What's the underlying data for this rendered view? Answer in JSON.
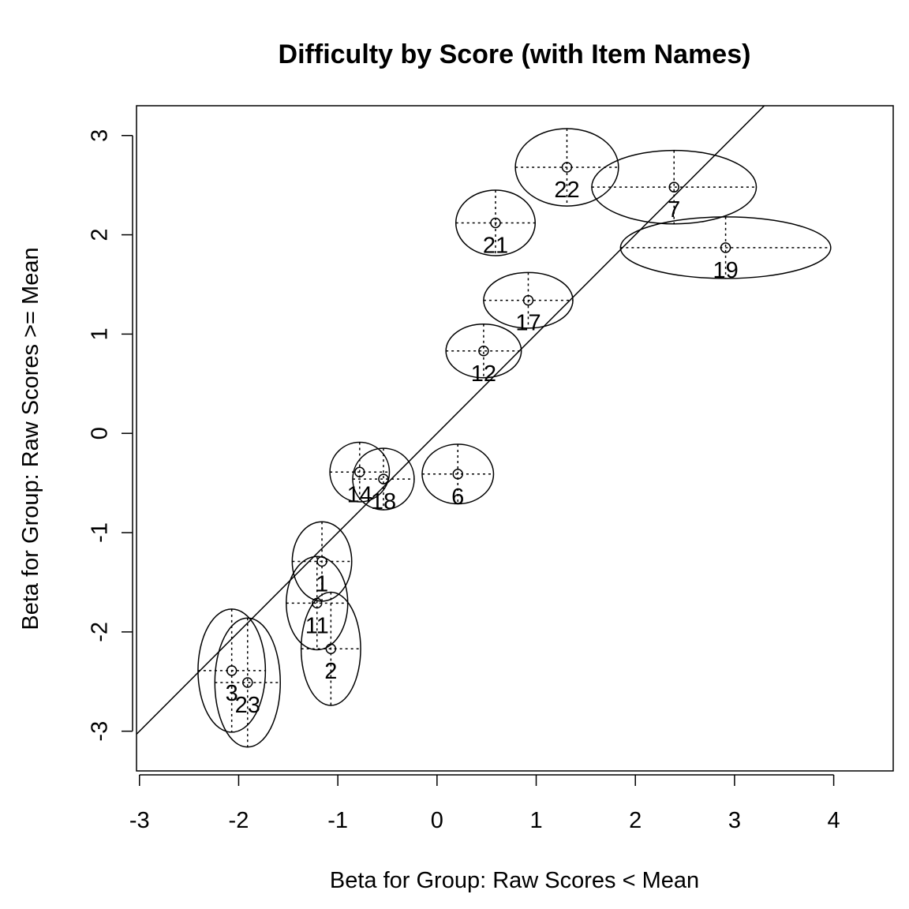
{
  "chart_data": {
    "type": "scatter",
    "title": "Difficulty by Score (with Item Names)",
    "xlabel": "Beta for Group: Raw Scores < Mean",
    "ylabel": "Beta for Group: Raw Scores >= Mean",
    "xlim": [
      -3.03,
      4.6
    ],
    "ylim": [
      -3.4,
      3.3
    ],
    "xticks": [
      -3,
      -2,
      -1,
      0,
      1,
      2,
      3,
      4
    ],
    "yticks": [
      -3,
      -2,
      -1,
      0,
      1,
      2,
      3
    ],
    "xtick_labels": [
      "-3",
      "-2",
      "-1",
      "0",
      "1",
      "2",
      "3",
      "4"
    ],
    "ytick_labels": [
      "-3",
      "-2",
      "-1",
      "0",
      "1",
      "2",
      "3"
    ],
    "identity_line": {
      "slope": 1,
      "intercept": 0
    },
    "points": [
      {
        "label": "22",
        "x": 1.31,
        "y": 2.68,
        "x_err": 0.52,
        "y_err": 0.39
      },
      {
        "label": "7",
        "x": 2.39,
        "y": 2.48,
        "x_err": 0.83,
        "y_err": 0.37
      },
      {
        "label": "21",
        "x": 0.59,
        "y": 2.12,
        "x_err": 0.4,
        "y_err": 0.33
      },
      {
        "label": "19",
        "x": 2.91,
        "y": 1.87,
        "x_err": 1.06,
        "y_err": 0.31
      },
      {
        "label": "17",
        "x": 0.92,
        "y": 1.34,
        "x_err": 0.45,
        "y_err": 0.28
      },
      {
        "label": "12",
        "x": 0.47,
        "y": 0.83,
        "x_err": 0.38,
        "y_err": 0.27
      },
      {
        "label": "6",
        "x": 0.21,
        "y": -0.41,
        "x_err": 0.36,
        "y_err": 0.3
      },
      {
        "label": "14",
        "x": -0.78,
        "y": -0.39,
        "x_err": 0.3,
        "y_err": 0.3
      },
      {
        "label": "18",
        "x": -0.54,
        "y": -0.46,
        "x_err": 0.31,
        "y_err": 0.31
      },
      {
        "label": "1",
        "x": -1.16,
        "y": -1.29,
        "x_err": 0.3,
        "y_err": 0.4
      },
      {
        "label": "11",
        "x": -1.21,
        "y": -1.71,
        "x_err": 0.31,
        "y_err": 0.47
      },
      {
        "label": "2",
        "x": -1.07,
        "y": -2.17,
        "x_err": 0.3,
        "y_err": 0.57
      },
      {
        "label": "3",
        "x": -2.07,
        "y": -2.39,
        "x_err": 0.34,
        "y_err": 0.62
      },
      {
        "label": "23",
        "x": -1.91,
        "y": -2.51,
        "x_err": 0.33,
        "y_err": 0.65
      }
    ]
  }
}
